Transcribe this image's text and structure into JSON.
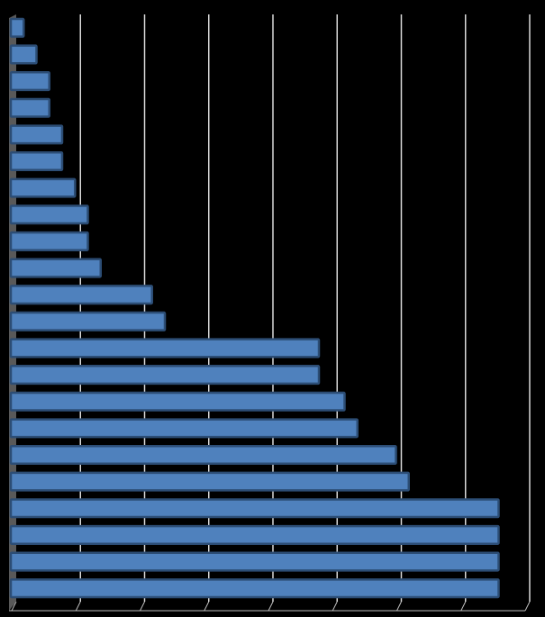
{
  "chart_data": {
    "type": "bar",
    "orientation": "horizontal",
    "categories": [
      null,
      null,
      null,
      null,
      null,
      null,
      null,
      null,
      null,
      null,
      null,
      null,
      null,
      null,
      null,
      null,
      null,
      null,
      null,
      null,
      null,
      null
    ],
    "values": [
      1,
      2,
      3,
      3,
      4,
      4,
      5,
      6,
      6,
      7,
      11,
      12,
      24,
      24,
      26,
      27,
      30,
      31,
      38,
      38,
      38,
      38
    ],
    "color": "#4f81bd",
    "xlim": [
      0,
      40
    ],
    "xticks": [
      0,
      5,
      10,
      15,
      20,
      25,
      30,
      35,
      40
    ],
    "grid": true
  }
}
